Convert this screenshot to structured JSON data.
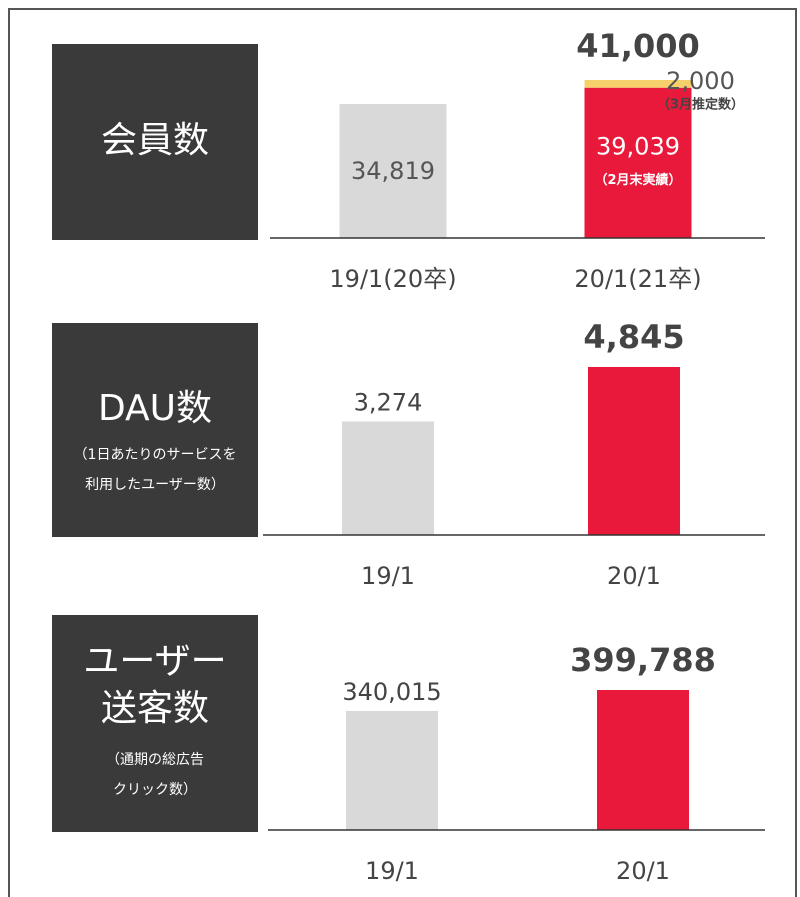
{
  "chart_data": [
    {
      "type": "bar",
      "title": [
        "会員数"
      ],
      "categories": [
        "19/1(20卒)",
        "20/1(21卒)"
      ],
      "series": [
        {
          "values": [
            34819,
            39039
          ],
          "colors": [
            "#d9d9d9",
            "#e8193a"
          ],
          "value_labels": [
            "34,819",
            "39,039"
          ],
          "notes": [
            null,
            "（2月末実績）"
          ]
        },
        {
          "values": [
            null,
            2000
          ],
          "color": "#f6d16b",
          "value_labels": [
            null,
            "2,000"
          ],
          "notes": [
            null,
            "（3月推定数）"
          ]
        }
      ],
      "total_labels": [
        null,
        "41,000"
      ]
    },
    {
      "type": "bar",
      "title": [
        "DAU数"
      ],
      "subtitle": [
        "（1日あたりのサービスを",
        "利用したユーザー数）"
      ],
      "categories": [
        "19/1",
        "20/1"
      ],
      "series": [
        {
          "values": [
            3274,
            4845
          ],
          "colors": [
            "#d9d9d9",
            "#e8193a"
          ],
          "value_labels": [
            "3,274",
            "4,845"
          ]
        }
      ]
    },
    {
      "type": "bar",
      "title": [
        "ユーザー",
        "送客数"
      ],
      "subtitle": [
        "（通期の総広告",
        "クリック数）"
      ],
      "categories": [
        "19/1",
        "20/1"
      ],
      "series": [
        {
          "values": [
            340015,
            399788
          ],
          "colors": [
            "#d9d9d9",
            "#e8193a"
          ],
          "value_labels": [
            "340,015",
            "399,788"
          ]
        }
      ]
    }
  ]
}
